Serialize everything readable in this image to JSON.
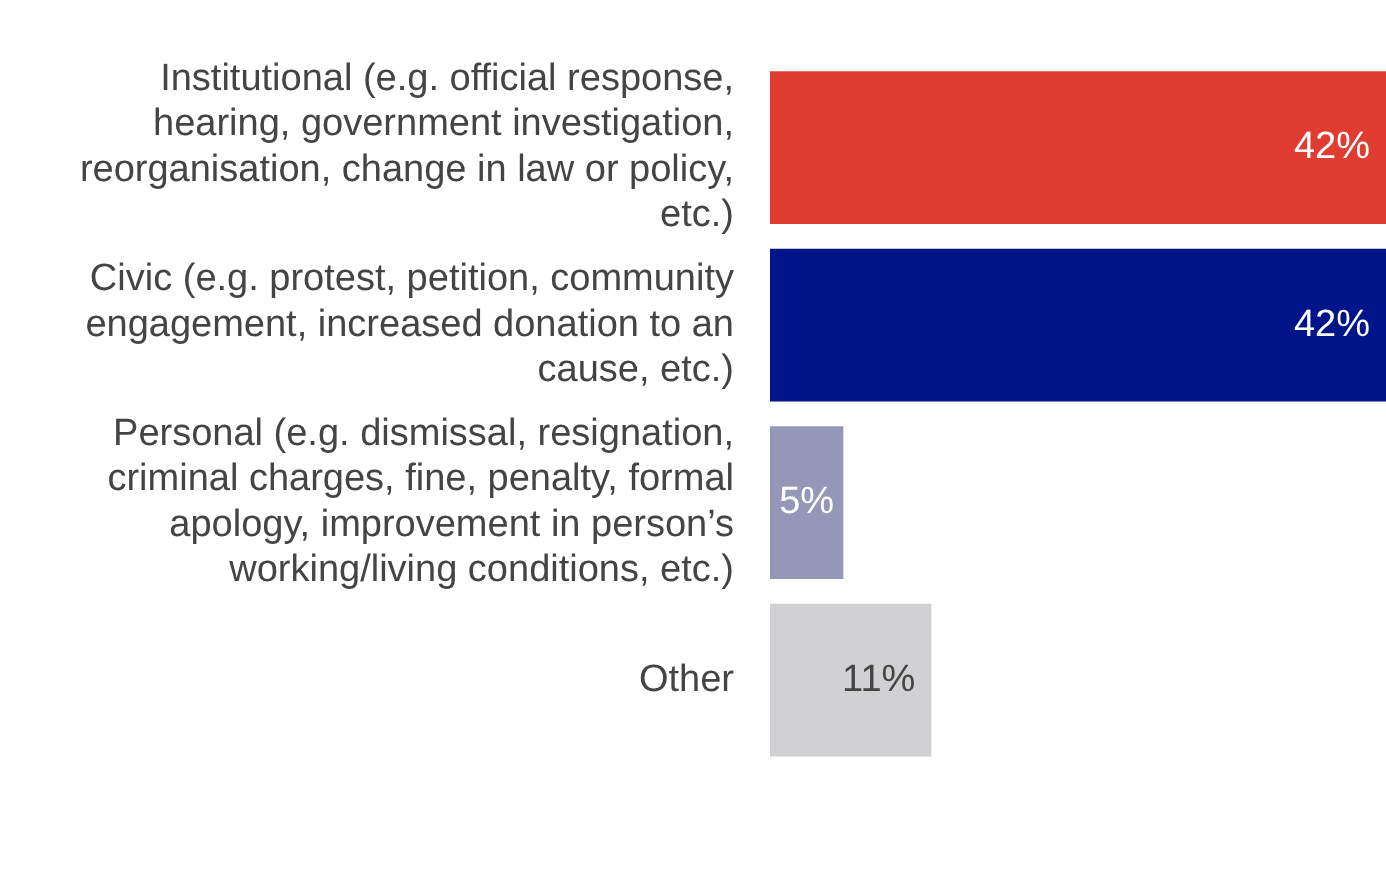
{
  "chart_data": {
    "type": "bar",
    "orientation": "horizontal",
    "categories": [
      "Institutional (e.g. official response, hearing, government investigation, reorganisation, change in law or policy, etc.)",
      "Civic (e.g. protest, petition, community engagement, increased donation to an cause, etc.)",
      "Personal (e.g. dismissal, resignation, criminal charges, fine, penalty, formal apology, improvement in person’s working/living conditions, etc.)",
      "Other"
    ],
    "values": [
      42,
      42,
      5,
      11
    ],
    "colors": [
      "#e03c31",
      "#001489",
      "#9497b8",
      "#d1d1d3"
    ],
    "value_labels": [
      "42%",
      "42%",
      "5%",
      "11%"
    ],
    "legend": false,
    "grid": false
  }
}
